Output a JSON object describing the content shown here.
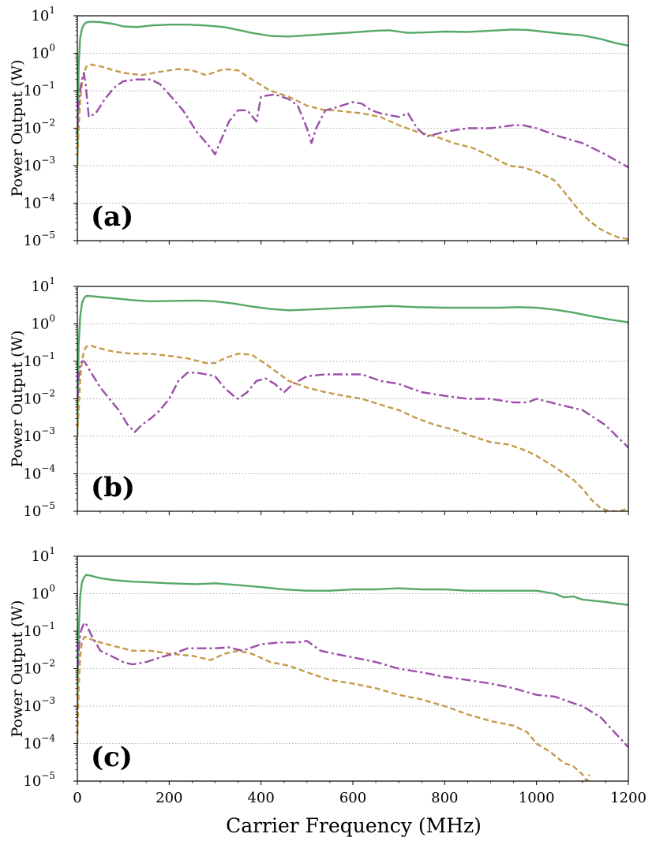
{
  "figure": {
    "xlabel": "Carrier Frequency (MHz)"
  },
  "chart_data": [
    {
      "type": "line",
      "panel_label": "(a)",
      "ylabel": "Power Output (W)",
      "xlabel": "",
      "y_scale": "log",
      "xlim": [
        0,
        1200
      ],
      "ylim": [
        1e-05,
        10
      ],
      "x_ticks": [
        0,
        200,
        400,
        600,
        800,
        1000,
        1200
      ],
      "x_tick_labels": [
        "",
        "",
        "",
        "",
        "",
        "",
        ""
      ],
      "y_ticks": [
        {
          "base": "10",
          "exp": "1"
        },
        {
          "base": "10",
          "exp": "0"
        },
        {
          "base": "10",
          "exp": "−1"
        },
        {
          "base": "10",
          "exp": "−2"
        },
        {
          "base": "10",
          "exp": "−3"
        },
        {
          "base": "10",
          "exp": "−4"
        },
        {
          "base": "10",
          "exp": "−5"
        }
      ],
      "grid": "y dotted",
      "series": [
        {
          "name": "green-solid",
          "color": "#55a868",
          "style": "solid",
          "x": [
            0,
            3,
            6,
            10,
            15,
            20,
            30,
            50,
            80,
            100,
            130,
            160,
            200,
            240,
            280,
            320,
            350,
            380,
            420,
            460,
            500,
            550,
            600,
            650,
            680,
            720,
            760,
            800,
            850,
            900,
            950,
            980,
            1020,
            1060,
            1100,
            1140,
            1170,
            1200
          ],
          "y": [
            0.001,
            0.5,
            2.5,
            4.5,
            6,
            6.7,
            7,
            6.8,
            6,
            5.2,
            5.0,
            5.5,
            5.8,
            5.8,
            5.5,
            5.0,
            4.2,
            3.5,
            2.9,
            2.8,
            3.0,
            3.3,
            3.6,
            4.0,
            4.1,
            3.5,
            3.6,
            3.8,
            3.7,
            4.0,
            4.3,
            4.2,
            3.7,
            3.3,
            3.0,
            2.4,
            1.9,
            1.6
          ]
        },
        {
          "name": "orange-dashed",
          "color": "#c49a4a",
          "style": "dashed",
          "x": [
            0,
            3,
            6,
            10,
            15,
            20,
            30,
            50,
            80,
            100,
            140,
            180,
            220,
            250,
            280,
            320,
            350,
            380,
            420,
            460,
            500,
            540,
            560,
            580,
            620,
            660,
            700,
            740,
            780,
            820,
            860,
            900,
            940,
            970,
            1000,
            1040,
            1060,
            1080,
            1100,
            1120,
            1140,
            1160,
            1180,
            1200
          ],
          "y": [
            0.001,
            0.01,
            0.05,
            0.15,
            0.3,
            0.45,
            0.5,
            0.45,
            0.35,
            0.3,
            0.26,
            0.32,
            0.38,
            0.35,
            0.26,
            0.38,
            0.35,
            0.2,
            0.1,
            0.07,
            0.04,
            0.03,
            0.03,
            0.028,
            0.025,
            0.02,
            0.012,
            0.008,
            0.006,
            0.004,
            0.003,
            0.0018,
            0.001,
            0.0009,
            0.0007,
            0.0004,
            0.0002,
            0.0001,
            5e-05,
            3e-05,
            2e-05,
            1.5e-05,
            1.2e-05,
            1.1e-05
          ]
        },
        {
          "name": "purple-dashdot",
          "color": "#9b4ea8",
          "style": "dashdot",
          "x": [
            0,
            3,
            6,
            10,
            14,
            18,
            25,
            40,
            60,
            80,
            100,
            130,
            160,
            180,
            200,
            230,
            260,
            290,
            300,
            310,
            330,
            350,
            370,
            390,
            400,
            430,
            460,
            480,
            500,
            510,
            520,
            540,
            560,
            600,
            620,
            640,
            660,
            700,
            720,
            740,
            760,
            800,
            850,
            900,
            950,
            970,
            1000,
            1050,
            1100,
            1150,
            1200
          ],
          "y": [
            0.01,
            0.05,
            0.1,
            0.2,
            0.3,
            0.15,
            0.02,
            0.025,
            0.06,
            0.12,
            0.18,
            0.2,
            0.2,
            0.15,
            0.08,
            0.03,
            0.008,
            0.003,
            0.002,
            0.004,
            0.015,
            0.03,
            0.03,
            0.015,
            0.07,
            0.08,
            0.06,
            0.04,
            0.01,
            0.004,
            0.01,
            0.03,
            0.035,
            0.05,
            0.045,
            0.03,
            0.025,
            0.02,
            0.025,
            0.01,
            0.006,
            0.008,
            0.01,
            0.01,
            0.012,
            0.012,
            0.01,
            0.006,
            0.004,
            0.002,
            0.0009
          ]
        }
      ]
    },
    {
      "type": "line",
      "panel_label": "(b)",
      "ylabel": "Power Output (W)",
      "xlabel": "",
      "y_scale": "log",
      "xlim": [
        0,
        1200
      ],
      "ylim": [
        1e-05,
        10
      ],
      "x_ticks": [
        0,
        200,
        400,
        600,
        800,
        1000,
        1200
      ],
      "x_tick_labels": [
        "",
        "",
        "",
        "",
        "",
        "",
        ""
      ],
      "y_ticks": [
        {
          "base": "10",
          "exp": "1"
        },
        {
          "base": "10",
          "exp": "0"
        },
        {
          "base": "10",
          "exp": "−1"
        },
        {
          "base": "10",
          "exp": "−2"
        },
        {
          "base": "10",
          "exp": "−3"
        },
        {
          "base": "10",
          "exp": "−4"
        },
        {
          "base": "10",
          "exp": "−5"
        }
      ],
      "grid": "y dotted",
      "series": [
        {
          "name": "green-solid",
          "color": "#55a868",
          "style": "solid",
          "x": [
            0,
            3,
            6,
            10,
            15,
            20,
            30,
            50,
            80,
            120,
            160,
            200,
            260,
            300,
            340,
            380,
            420,
            460,
            500,
            560,
            620,
            680,
            740,
            800,
            860,
            920,
            960,
            1000,
            1040,
            1080,
            1120,
            1160,
            1200
          ],
          "y": [
            0.001,
            0.3,
            1.5,
            3.5,
            5,
            5.6,
            5.5,
            5.2,
            4.8,
            4.3,
            4.0,
            4.1,
            4.2,
            4.0,
            3.5,
            2.9,
            2.5,
            2.3,
            2.4,
            2.6,
            2.8,
            3.0,
            2.8,
            2.7,
            2.7,
            2.7,
            2.8,
            2.7,
            2.4,
            2.0,
            1.6,
            1.3,
            1.1
          ]
        },
        {
          "name": "orange-dashed",
          "color": "#c49a4a",
          "style": "dashed",
          "x": [
            0,
            3,
            6,
            10,
            15,
            20,
            30,
            50,
            80,
            120,
            160,
            200,
            240,
            280,
            300,
            320,
            350,
            380,
            420,
            460,
            500,
            540,
            580,
            620,
            660,
            700,
            740,
            780,
            820,
            860,
            900,
            940,
            980,
            1000,
            1040,
            1080,
            1100,
            1120,
            1140,
            1160,
            1180,
            1200
          ],
          "y": [
            0.001,
            0.005,
            0.03,
            0.1,
            0.2,
            0.25,
            0.26,
            0.22,
            0.18,
            0.16,
            0.16,
            0.14,
            0.12,
            0.09,
            0.09,
            0.12,
            0.16,
            0.15,
            0.07,
            0.03,
            0.02,
            0.015,
            0.012,
            0.01,
            0.007,
            0.005,
            0.003,
            0.002,
            0.0015,
            0.001,
            0.0007,
            0.0006,
            0.0004,
            0.0003,
            0.00015,
            7e-05,
            4e-05,
            2e-05,
            1.2e-05,
            1e-05,
            1e-05,
            1.2e-05
          ]
        },
        {
          "name": "purple-dashdot",
          "color": "#9b4ea8",
          "style": "dashdot",
          "x": [
            0,
            3,
            6,
            10,
            15,
            20,
            30,
            50,
            70,
            90,
            110,
            125,
            140,
            160,
            180,
            200,
            220,
            240,
            260,
            280,
            300,
            320,
            340,
            350,
            370,
            390,
            410,
            430,
            450,
            470,
            500,
            540,
            580,
            620,
            660,
            700,
            750,
            800,
            850,
            900,
            950,
            980,
            1000,
            1050,
            1100,
            1150,
            1200
          ],
          "y": [
            0.01,
            0.04,
            0.08,
            0.1,
            0.1,
            0.08,
            0.05,
            0.02,
            0.01,
            0.005,
            0.002,
            0.0013,
            0.002,
            0.003,
            0.005,
            0.01,
            0.03,
            0.05,
            0.05,
            0.045,
            0.04,
            0.02,
            0.012,
            0.01,
            0.015,
            0.03,
            0.035,
            0.025,
            0.015,
            0.025,
            0.04,
            0.045,
            0.045,
            0.045,
            0.03,
            0.025,
            0.015,
            0.012,
            0.01,
            0.01,
            0.008,
            0.008,
            0.01,
            0.007,
            0.005,
            0.002,
            0.0005
          ]
        }
      ]
    },
    {
      "type": "line",
      "panel_label": "(c)",
      "ylabel": "Power Output (W)",
      "xlabel": "Carrier Frequency (MHz)",
      "y_scale": "log",
      "xlim": [
        0,
        1200
      ],
      "ylim": [
        1e-05,
        10
      ],
      "x_ticks": [
        0,
        200,
        400,
        600,
        800,
        1000,
        1200
      ],
      "x_tick_labels": [
        "0",
        "200",
        "400",
        "600",
        "800",
        "1000",
        "1200"
      ],
      "y_ticks": [
        {
          "base": "10",
          "exp": "1"
        },
        {
          "base": "10",
          "exp": "0"
        },
        {
          "base": "10",
          "exp": "−1"
        },
        {
          "base": "10",
          "exp": "−2"
        },
        {
          "base": "10",
          "exp": "−3"
        },
        {
          "base": "10",
          "exp": "−4"
        },
        {
          "base": "10",
          "exp": "−5"
        }
      ],
      "grid": "y dotted",
      "series": [
        {
          "name": "green-solid",
          "color": "#55a868",
          "style": "solid",
          "x": [
            0,
            3,
            6,
            10,
            15,
            20,
            30,
            50,
            80,
            120,
            160,
            200,
            260,
            300,
            350,
            400,
            450,
            500,
            550,
            600,
            650,
            700,
            750,
            800,
            850,
            900,
            950,
            1000,
            1040,
            1060,
            1080,
            1100,
            1150,
            1200
          ],
          "y": [
            0.001,
            0.1,
            0.8,
            2,
            2.8,
            3.2,
            3.0,
            2.6,
            2.3,
            2.1,
            2.0,
            1.9,
            1.8,
            1.9,
            1.7,
            1.5,
            1.3,
            1.2,
            1.2,
            1.3,
            1.3,
            1.4,
            1.3,
            1.3,
            1.2,
            1.2,
            1.2,
            1.2,
            1.0,
            0.8,
            0.85,
            0.7,
            0.6,
            0.5
          ]
        },
        {
          "name": "orange-dashed",
          "color": "#c49a4a",
          "style": "dashed",
          "x": [
            0,
            3,
            6,
            10,
            15,
            20,
            30,
            50,
            80,
            120,
            160,
            200,
            250,
            290,
            320,
            350,
            380,
            420,
            460,
            500,
            550,
            600,
            650,
            700,
            750,
            800,
            850,
            900,
            950,
            980,
            1000,
            1030,
            1060,
            1080,
            1100,
            1110,
            1115
          ],
          "y": [
            0.0001,
            0.003,
            0.02,
            0.05,
            0.07,
            0.07,
            0.06,
            0.05,
            0.04,
            0.03,
            0.03,
            0.025,
            0.022,
            0.017,
            0.025,
            0.03,
            0.025,
            0.015,
            0.012,
            0.008,
            0.005,
            0.004,
            0.003,
            0.002,
            0.0015,
            0.001,
            0.0006,
            0.0004,
            0.0003,
            0.0002,
            0.0001,
            6e-05,
            3e-05,
            2.5e-05,
            1.5e-05,
            1e-05,
            1.5e-05
          ]
        },
        {
          "name": "purple-dashdot",
          "color": "#9b4ea8",
          "style": "dashdot",
          "x": [
            0,
            3,
            6,
            10,
            15,
            20,
            30,
            50,
            80,
            100,
            120,
            150,
            180,
            210,
            240,
            270,
            300,
            330,
            360,
            400,
            440,
            480,
            500,
            530,
            560,
            600,
            650,
            700,
            750,
            800,
            850,
            900,
            950,
            1000,
            1040,
            1080,
            1100,
            1140,
            1170,
            1200
          ],
          "y": [
            0.01,
            0.03,
            0.08,
            0.12,
            0.17,
            0.15,
            0.08,
            0.03,
            0.02,
            0.015,
            0.013,
            0.015,
            0.02,
            0.025,
            0.035,
            0.035,
            0.035,
            0.037,
            0.03,
            0.045,
            0.05,
            0.05,
            0.055,
            0.03,
            0.025,
            0.02,
            0.015,
            0.01,
            0.008,
            0.006,
            0.005,
            0.004,
            0.003,
            0.002,
            0.0018,
            0.0012,
            0.001,
            0.0005,
            0.0002,
            8e-05
          ]
        }
      ]
    }
  ]
}
